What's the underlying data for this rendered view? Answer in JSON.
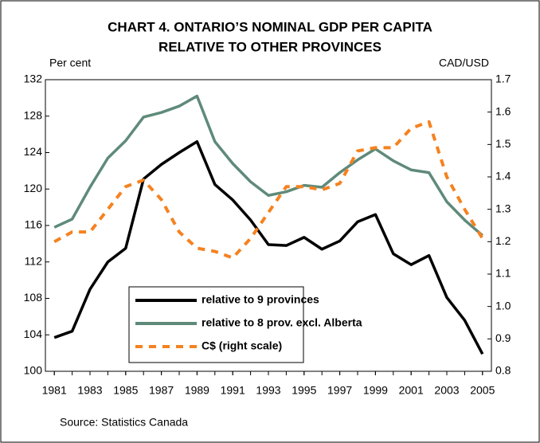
{
  "chart_data": {
    "type": "line",
    "title": "CHART 4. ONTARIO’S NOMINAL GDP PER CAPITA",
    "subtitle": "RELATIVE TO OTHER PROVINCES",
    "ylabel": "Per cent",
    "y2label": "CAD/USD",
    "source": "Source: Statistics Canada",
    "x": [
      1981,
      1982,
      1983,
      1984,
      1985,
      1986,
      1987,
      1988,
      1989,
      1990,
      1991,
      1992,
      1993,
      1994,
      1995,
      1996,
      1997,
      1998,
      1999,
      2000,
      2001,
      2002,
      2003,
      2004,
      2005
    ],
    "xlim": [
      1980.5,
      2005.5
    ],
    "xticks": [
      1981,
      1983,
      1985,
      1987,
      1989,
      1991,
      1993,
      1995,
      1997,
      1999,
      2001,
      2003,
      2005
    ],
    "ylim": [
      100,
      132
    ],
    "yticks": [
      100,
      104,
      108,
      112,
      116,
      120,
      124,
      128,
      132
    ],
    "y2lim": [
      0.8,
      1.7
    ],
    "y2ticks": [
      0.8,
      0.9,
      {
        "value": 1.0,
        "label": "1.0"
      },
      1.1,
      1.2,
      1.3,
      1.4,
      1.5,
      1.6,
      1.7
    ],
    "series": [
      {
        "name": "relative to 9 provinces",
        "color": "#000000",
        "dash": false,
        "values": [
          103.7,
          104.4,
          109,
          112,
          113.5,
          121.1,
          122.7,
          124,
          125.2,
          120.5,
          118.8,
          116.6,
          113.9,
          113.8,
          114.7,
          113.4,
          114.3,
          116.4,
          117.2,
          112.9,
          111.7,
          112.7,
          108.1,
          105.6,
          101.9
        ]
      },
      {
        "name": "relative to 8 prov. excl. Alberta",
        "color": "#5f8a7a",
        "dash": false,
        "values": [
          115.8,
          116.7,
          120.2,
          123.4,
          125.3,
          127.9,
          128.4,
          129.1,
          130.2,
          125.2,
          122.8,
          120.8,
          119.3,
          119.7,
          120.4,
          120.2,
          121.8,
          123.2,
          124.4,
          123.1,
          122.1,
          121.8,
          118.6,
          116.6,
          114.9
        ]
      },
      {
        "name": "C$ (right scale)",
        "color": "#f58220",
        "dash": true,
        "axis": "y2",
        "values": [
          1.2,
          1.23,
          1.23,
          1.3,
          1.37,
          1.39,
          1.33,
          1.23,
          1.18,
          1.17,
          1.15,
          1.21,
          1.29,
          1.37,
          1.37,
          1.36,
          1.38,
          1.48,
          1.49,
          1.49,
          1.55,
          1.57,
          1.4,
          1.3,
          1.21
        ]
      }
    ]
  }
}
